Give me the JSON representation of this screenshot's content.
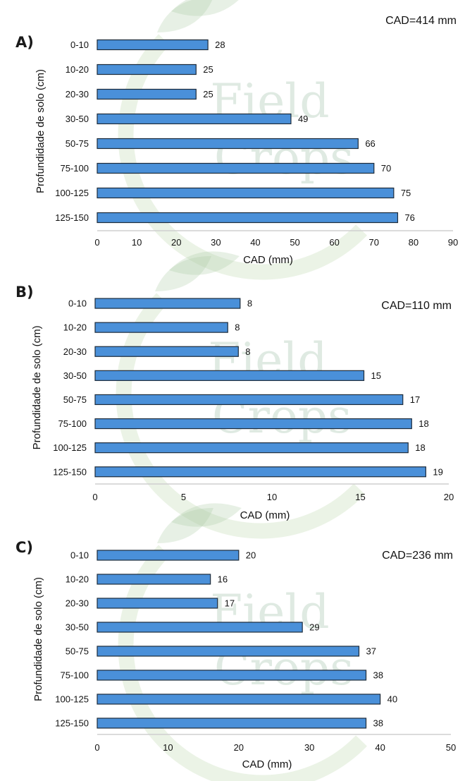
{
  "chart_data": [
    {
      "type": "bar",
      "orientation": "horizontal",
      "panel_label": "A)",
      "annotation": "CAD=414 mm",
      "categories": [
        "0-10",
        "10-20",
        "20-30",
        "30-50",
        "50-75",
        "75-100",
        "100-125",
        "125-150"
      ],
      "values": [
        28,
        25,
        25,
        49,
        66,
        70,
        75,
        76
      ],
      "xlabel": "CAD (mm)",
      "ylabel": "Profundidade de solo (cm)",
      "xlim": [
        0,
        90
      ],
      "xticks": [
        0,
        10,
        20,
        30,
        40,
        50,
        60,
        70,
        80,
        90
      ],
      "bar_color": "#4a90d9"
    },
    {
      "type": "bar",
      "orientation": "horizontal",
      "panel_label": "B)",
      "annotation": "CAD=110 mm",
      "categories": [
        "0-10",
        "10-20",
        "20-30",
        "30-50",
        "50-75",
        "75-100",
        "100-125",
        "125-150"
      ],
      "values": [
        8.2,
        7.5,
        8.1,
        15.2,
        17.4,
        17.9,
        17.7,
        18.7
      ],
      "data_labels": [
        "8",
        "8",
        "8",
        "15",
        "17",
        "18",
        "18",
        "19"
      ],
      "xlabel": "CAD (mm)",
      "ylabel": "Profundidade de solo (cm)",
      "xlim": [
        0,
        20
      ],
      "xticks": [
        0,
        5,
        10,
        15,
        20
      ],
      "bar_color": "#4a90d9"
    },
    {
      "type": "bar",
      "orientation": "horizontal",
      "panel_label": "C)",
      "annotation": "CAD=236 mm",
      "categories": [
        "0-10",
        "10-20",
        "20-30",
        "30-50",
        "50-75",
        "75-100",
        "100-125",
        "125-150"
      ],
      "values": [
        20,
        16,
        17,
        29,
        37,
        38,
        40,
        38
      ],
      "xlabel": "CAD (mm)",
      "ylabel": "Profundidade de solo (cm)",
      "xlim": [
        0,
        50
      ],
      "xticks": [
        0,
        10,
        20,
        30,
        40,
        50
      ],
      "bar_color": "#4a90d9"
    }
  ],
  "watermark": {
    "line1": "Field",
    "line2": "Crops"
  }
}
